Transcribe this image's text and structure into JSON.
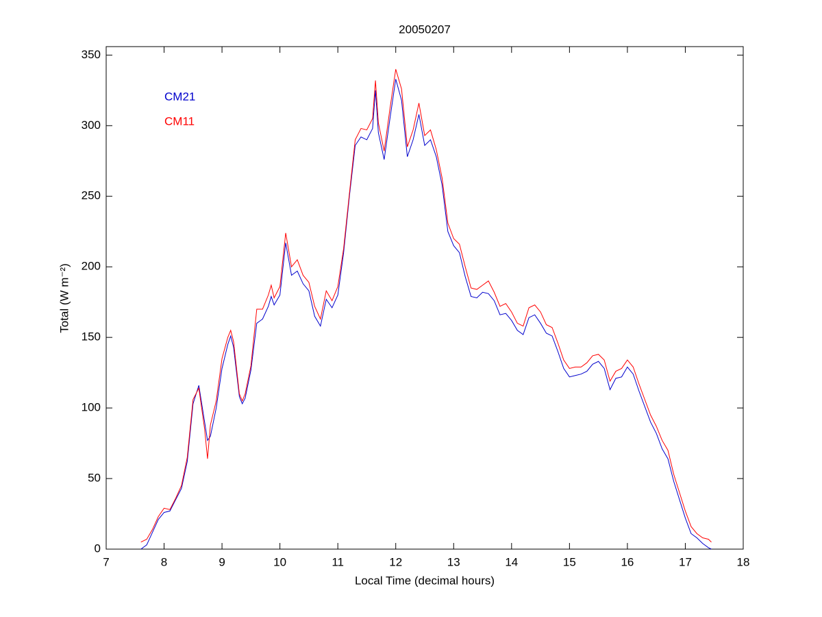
{
  "chart_data": {
    "type": "line",
    "title": "20050207",
    "xlabel": "Local Time (decimal hours)",
    "ylabel": "Total (W m⁻²)",
    "x": [
      7.6,
      7.7,
      7.8,
      7.9,
      8.0,
      8.1,
      8.2,
      8.3,
      8.4,
      8.5,
      8.6,
      8.7,
      8.75,
      8.8,
      8.9,
      9.0,
      9.1,
      9.15,
      9.2,
      9.3,
      9.35,
      9.4,
      9.5,
      9.6,
      9.7,
      9.8,
      9.85,
      9.9,
      10.0,
      10.1,
      10.2,
      10.3,
      10.4,
      10.5,
      10.6,
      10.7,
      10.8,
      10.9,
      11.0,
      11.1,
      11.2,
      11.3,
      11.4,
      11.5,
      11.6,
      11.65,
      11.7,
      11.8,
      11.9,
      12.0,
      12.1,
      12.2,
      12.3,
      12.4,
      12.5,
      12.6,
      12.7,
      12.8,
      12.9,
      13.0,
      13.1,
      13.2,
      13.3,
      13.4,
      13.5,
      13.6,
      13.7,
      13.8,
      13.9,
      14.0,
      14.1,
      14.2,
      14.3,
      14.4,
      14.5,
      14.6,
      14.7,
      14.8,
      14.9,
      15.0,
      15.1,
      15.2,
      15.3,
      15.4,
      15.5,
      15.6,
      15.7,
      15.8,
      15.9,
      16.0,
      16.1,
      16.2,
      16.3,
      16.4,
      16.5,
      16.6,
      16.7,
      16.8,
      16.9,
      17.0,
      17.1,
      17.2,
      17.3,
      17.4,
      17.45
    ],
    "series": [
      {
        "name": "CM21",
        "color": "#0000cc",
        "values": [
          0,
          3,
          12,
          21,
          26,
          27,
          35,
          43,
          62,
          103,
          116,
          90,
          77,
          80,
          100,
          128,
          145,
          151,
          143,
          108,
          103,
          107,
          127,
          160,
          163,
          172,
          179,
          173,
          180,
          217,
          194,
          197,
          188,
          183,
          165,
          158,
          177,
          171,
          180,
          210,
          250,
          286,
          292,
          290,
          298,
          325,
          295,
          276,
          305,
          333,
          318,
          278,
          290,
          308,
          286,
          290,
          278,
          258,
          225,
          215,
          210,
          193,
          179,
          178,
          182,
          181,
          176,
          166,
          167,
          162,
          155,
          152,
          164,
          166,
          160,
          153,
          151,
          140,
          128,
          122,
          123,
          124,
          126,
          131,
          133,
          128,
          113,
          121,
          122,
          129,
          124,
          112,
          101,
          90,
          82,
          71,
          64,
          48,
          35,
          22,
          11,
          8,
          4,
          1,
          0
        ]
      },
      {
        "name": "CM11",
        "color": "#ff0000",
        "values": [
          5,
          7,
          14,
          23,
          29,
          28,
          36,
          45,
          65,
          106,
          114,
          85,
          64,
          88,
          105,
          135,
          150,
          155,
          147,
          110,
          105,
          110,
          130,
          170,
          170,
          180,
          187,
          178,
          186,
          224,
          200,
          205,
          194,
          189,
          172,
          163,
          183,
          176,
          186,
          213,
          252,
          290,
          298,
          297,
          305,
          332,
          302,
          282,
          312,
          340,
          326,
          285,
          297,
          316,
          293,
          297,
          283,
          263,
          231,
          220,
          216,
          200,
          185,
          184,
          187,
          190,
          182,
          172,
          174,
          168,
          160,
          158,
          171,
          173,
          168,
          159,
          157,
          146,
          134,
          128,
          129,
          129,
          132,
          137,
          138,
          134,
          119,
          126,
          128,
          134,
          129,
          117,
          106,
          95,
          87,
          77,
          70,
          53,
          40,
          27,
          16,
          11,
          8,
          7,
          5
        ]
      }
    ],
    "xlim": [
      7,
      18
    ],
    "xticks": [
      7,
      8,
      9,
      10,
      11,
      12,
      13,
      14,
      15,
      16,
      17,
      18
    ],
    "ylim": [
      0,
      356
    ],
    "yticks": [
      0,
      50,
      100,
      150,
      200,
      250,
      300,
      350
    ],
    "grid": false,
    "legend": "upper left"
  }
}
